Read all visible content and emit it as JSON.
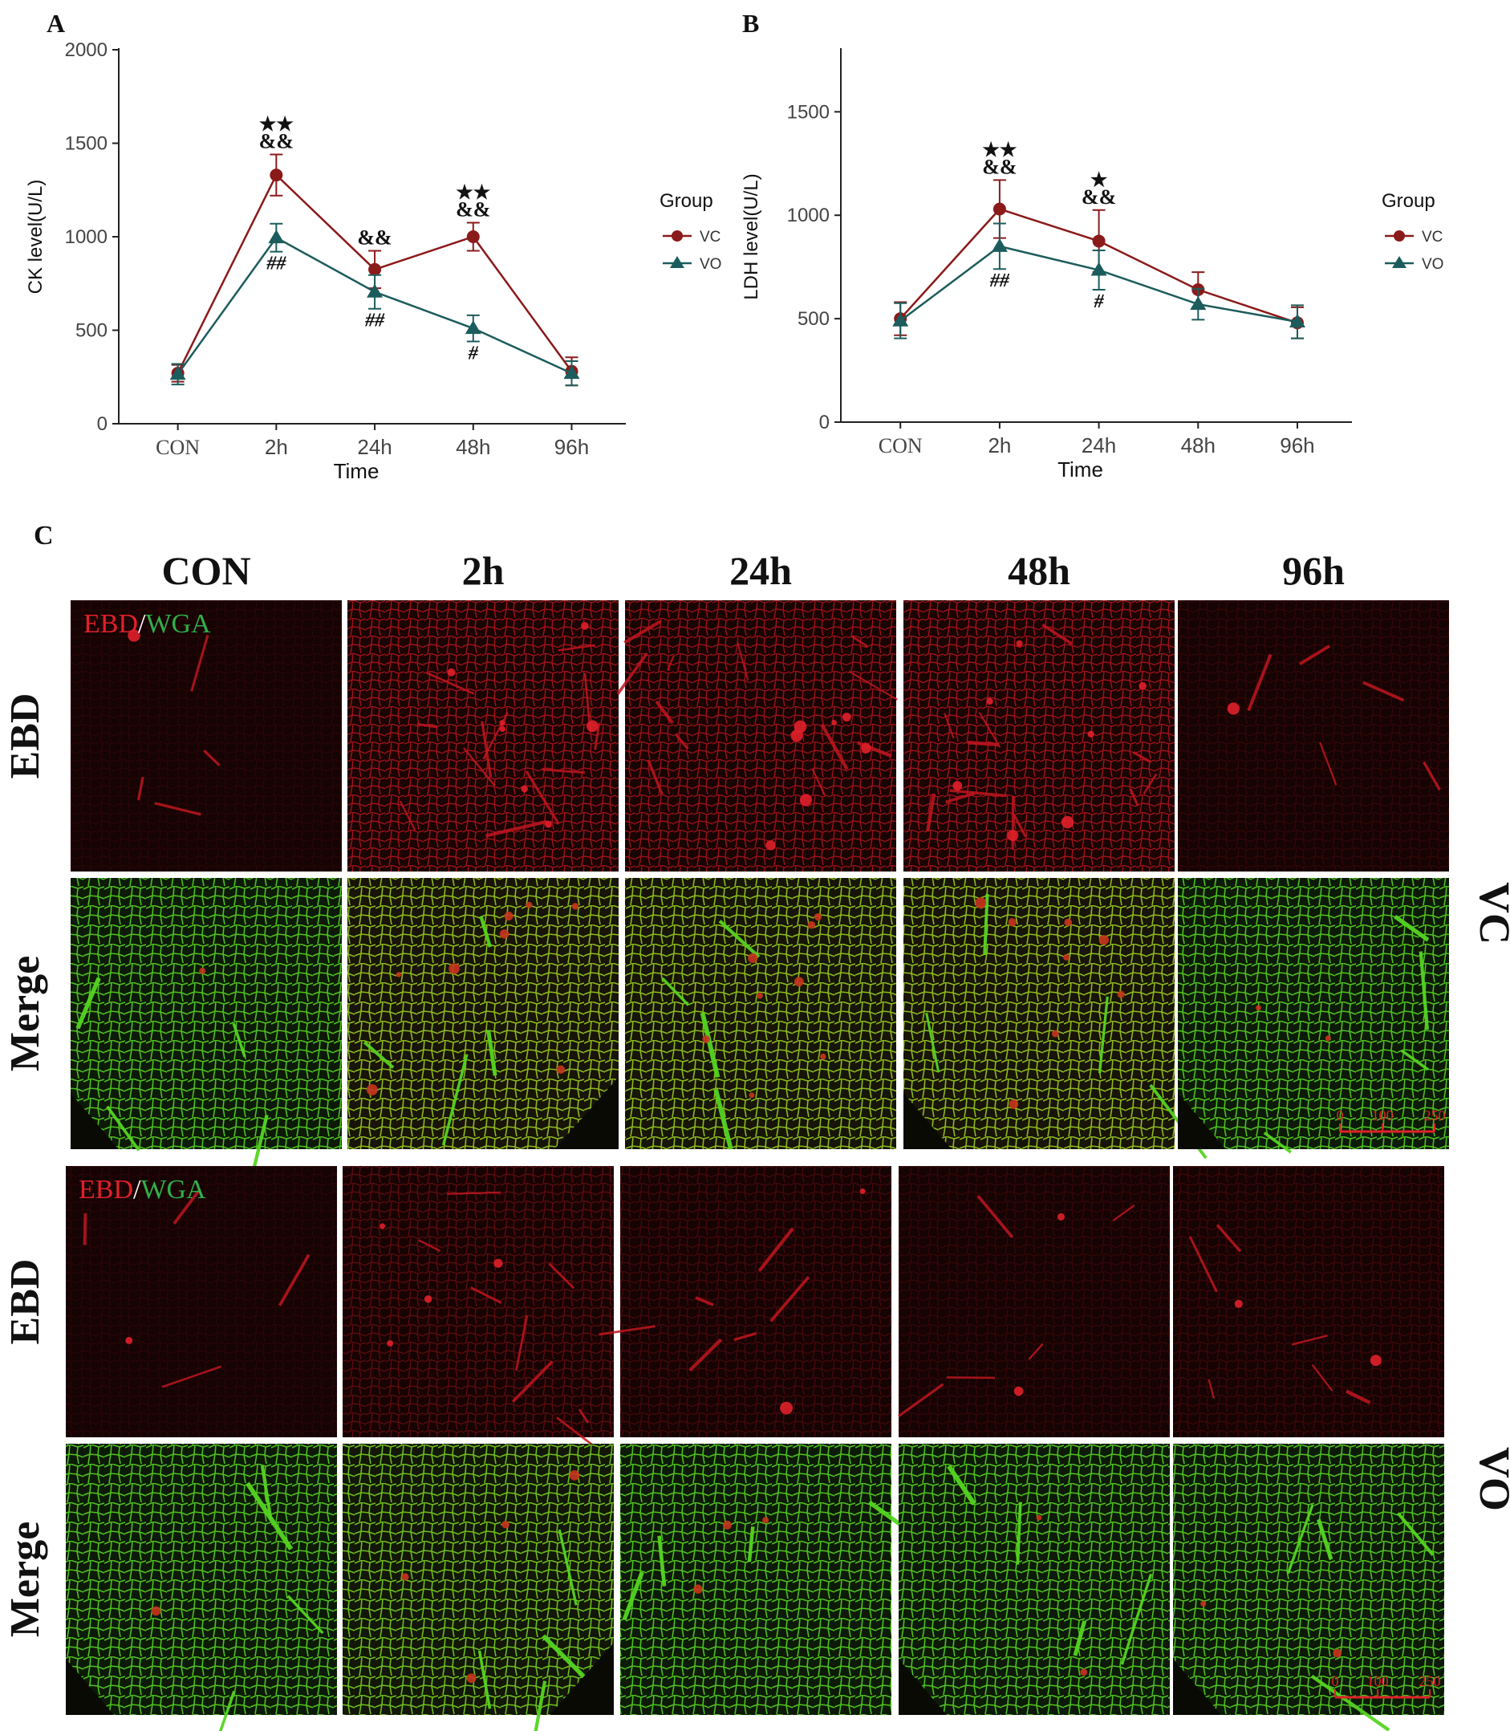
{
  "chart_data": [
    {
      "panel": "A",
      "type": "line",
      "categories": [
        "CON",
        "2h",
        "24h",
        "48h",
        "96h"
      ],
      "xlabel": "Time",
      "ylabel": "CK level(U/L)",
      "ylim": [
        0,
        2000
      ],
      "yticks": [
        "0",
        "500",
        "1000",
        "1500",
        "2000"
      ],
      "legend_title": "Group",
      "legend_position": "right",
      "grid": false,
      "series": [
        {
          "name": "VC",
          "marker": "circle",
          "color": "#8b1a1a",
          "values": [
            270,
            1330,
            825,
            1000,
            280
          ],
          "errors": [
            45,
            110,
            100,
            75,
            75
          ],
          "annotations": [
            "",
            "★★\n&&",
            "&&",
            "★★\n&&",
            ""
          ]
        },
        {
          "name": "VO",
          "marker": "triangle",
          "color": "#1d5c5c",
          "values": [
            265,
            995,
            705,
            510,
            270
          ],
          "errors": [
            55,
            75,
            90,
            70,
            65
          ],
          "annotations": [
            "",
            "##",
            "##",
            "#",
            ""
          ]
        }
      ]
    },
    {
      "panel": "B",
      "type": "line",
      "categories": [
        "CON",
        "2h",
        "24h",
        "48h",
        "96h"
      ],
      "xlabel": "Time",
      "ylabel": "LDH level(U/L)",
      "ylim": [
        0,
        1800
      ],
      "yticks": [
        "0",
        "500",
        "1000",
        "1500"
      ],
      "legend_title": "Group",
      "legend_position": "right",
      "grid": false,
      "series": [
        {
          "name": "VC",
          "marker": "circle",
          "color": "#8b1a1a",
          "values": [
            500,
            1030,
            875,
            640,
            480
          ],
          "errors": [
            80,
            140,
            150,
            85,
            75
          ],
          "annotations": [
            "",
            "★★\n&&",
            "★\n&&",
            "",
            ""
          ]
        },
        {
          "name": "VO",
          "marker": "triangle",
          "color": "#1d5c5c",
          "values": [
            490,
            850,
            735,
            570,
            485
          ],
          "errors": [
            85,
            110,
            95,
            75,
            80
          ],
          "annotations": [
            "",
            "##",
            "#",
            "",
            ""
          ]
        }
      ]
    }
  ],
  "panel_c": {
    "label": "C",
    "columns": [
      "CON",
      "2h",
      "24h",
      "48h",
      "96h"
    ],
    "rows": [
      "EBD",
      "Merge",
      "EBD",
      "Merge"
    ],
    "groups": [
      "VC",
      "VO"
    ],
    "stain_red": "EBD",
    "stain_sep": "/",
    "stain_green": "WGA",
    "scale_labels": [
      "0",
      "100",
      "250"
    ],
    "colors": {
      "ebd_bg": "#150303",
      "merge_bg": "#0d1a08",
      "ebd_signal": "#c0161f",
      "wga_signal": "#46c21a"
    },
    "ebd_intensity": [
      [
        0.12,
        0.9,
        0.85,
        0.9,
        0.18
      ],
      [
        0.12,
        0.45,
        0.3,
        0.2,
        0.25
      ]
    ]
  }
}
